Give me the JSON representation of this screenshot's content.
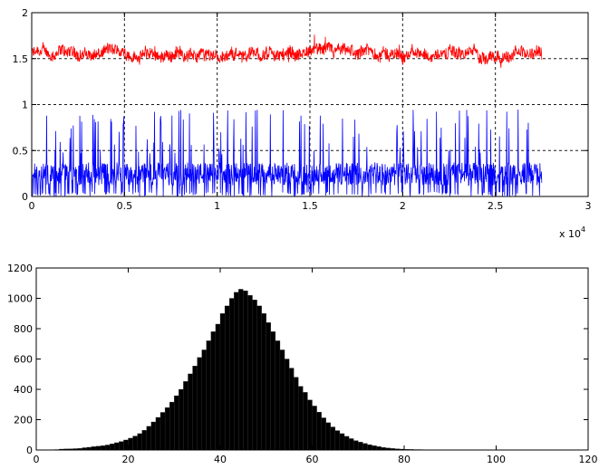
{
  "chart_data": [
    {
      "type": "line",
      "title": "",
      "xlabel": "",
      "ylabel": "",
      "x_exponent_label": "x 10",
      "x_exponent_power": "4",
      "xlim": [
        0,
        30000
      ],
      "ylim": [
        0,
        2
      ],
      "xticks": [
        0,
        5000,
        10000,
        15000,
        20000,
        25000,
        30000
      ],
      "xtick_labels": [
        "0",
        "0.5",
        "1",
        "1.5",
        "2",
        "2.5",
        "3"
      ],
      "yticks": [
        0,
        0.5,
        1,
        1.5,
        2
      ],
      "ytick_labels": [
        "0",
        "0.5",
        "1",
        "1.5",
        "2"
      ],
      "grid": true,
      "x_range_of_data": [
        0,
        27500
      ],
      "series": [
        {
          "color": "#ff0000",
          "mean": 1.55,
          "noise_amplitude": 0.09,
          "min_value": 1.3,
          "max_value": 1.8
        },
        {
          "color": "#0000ff",
          "mean": 0.22,
          "noise_amplitude": 0.25,
          "min_value": 0.0,
          "max_value": 1.0
        }
      ]
    },
    {
      "type": "bar",
      "title": "",
      "xlabel": "",
      "ylabel": "",
      "xlim": [
        0,
        120
      ],
      "ylim": [
        0,
        1200
      ],
      "xticks": [
        0,
        20,
        40,
        60,
        80,
        100,
        120
      ],
      "xtick_labels": [
        "0",
        "20",
        "40",
        "60",
        "80",
        "100",
        "120"
      ],
      "yticks": [
        0,
        200,
        400,
        600,
        800,
        1000,
        1200
      ],
      "ytick_labels": [
        "0",
        "200",
        "400",
        "600",
        "800",
        "1000",
        "1200"
      ],
      "grid": false,
      "bar_color": "#000000",
      "bin_start": 0,
      "bin_width": 1,
      "values": [
        0,
        0,
        0,
        0,
        3,
        6,
        7,
        8,
        9,
        11,
        15,
        18,
        22,
        25,
        28,
        33,
        40,
        48,
        56,
        66,
        78,
        92,
        108,
        130,
        156,
        185,
        215,
        248,
        280,
        316,
        358,
        400,
        452,
        502,
        554,
        610,
        660,
        720,
        780,
        830,
        900,
        950,
        1000,
        1040,
        1060,
        1050,
        1020,
        990,
        950,
        900,
        840,
        780,
        720,
        660,
        600,
        540,
        480,
        420,
        380,
        330,
        290,
        250,
        212,
        180,
        152,
        128,
        108,
        90,
        75,
        62,
        52,
        43,
        35,
        28,
        22,
        17,
        13,
        10,
        8,
        6,
        5,
        4,
        3,
        3,
        2,
        2,
        2,
        1,
        1,
        1,
        1,
        0,
        0,
        1,
        0,
        0,
        0,
        0,
        0,
        0,
        0,
        0,
        0,
        0,
        0,
        0,
        0,
        0,
        0,
        0,
        0,
        0,
        0,
        0,
        0,
        0,
        0,
        0,
        0,
        0,
        0
      ]
    }
  ]
}
